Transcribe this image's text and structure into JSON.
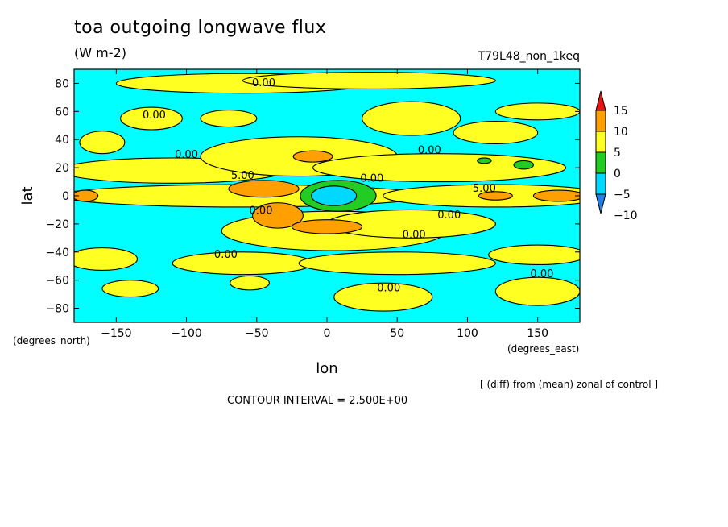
{
  "title": "toa outgoing longwave flux",
  "units": "(W m-2)",
  "case": "T79L48_non_1keq",
  "note": "[ (diff) from (mean) zonal of control ]",
  "contour_interval": "CONTOUR INTERVAL = 2.500E+00",
  "chart_data": {
    "type": "heatmap",
    "xlabel": "lon",
    "ylabel": "lat",
    "x_unit_label": "(degrees_east)",
    "y_unit_label": "(degrees_north)",
    "xlim": [
      -180,
      180
    ],
    "ylim": [
      -90,
      90
    ],
    "x_ticks": [
      -150,
      -100,
      -50,
      0,
      50,
      100,
      150
    ],
    "y_ticks": [
      -80,
      -60,
      -40,
      -20,
      0,
      20,
      40,
      60,
      80
    ],
    "colorbar": {
      "levels": [
        -10,
        -5,
        0,
        5,
        10,
        15
      ],
      "labels": [
        "15",
        "10",
        "5",
        "0",
        "−5",
        "−10"
      ],
      "colors": [
        "#1e7fe6",
        "#00d8ff",
        "#22cc22",
        "#ffff22",
        "#ffa000",
        "#e81414"
      ]
    },
    "background_color": "#00ffff",
    "contour_labels": [
      {
        "text": "0.00",
        "lon": -45,
        "lat": 78
      },
      {
        "text": "0.00",
        "lon": -123,
        "lat": 55
      },
      {
        "text": "0.00",
        "lon": -100,
        "lat": 27
      },
      {
        "text": "5.00",
        "lon": -60,
        "lat": 12
      },
      {
        "text": "0.00",
        "lon": -47,
        "lat": -13
      },
      {
        "text": "0.00",
        "lon": 32,
        "lat": 10
      },
      {
        "text": "0.00",
        "lon": 73,
        "lat": 30
      },
      {
        "text": "5.00",
        "lon": 112,
        "lat": 3
      },
      {
        "text": "0.00",
        "lon": 87,
        "lat": -16
      },
      {
        "text": "0.00",
        "lon": 62,
        "lat": -30
      },
      {
        "text": "0.00",
        "lon": -72,
        "lat": -44
      },
      {
        "text": "0.00",
        "lon": 44,
        "lat": -68
      },
      {
        "text": "0.00",
        "lon": 153,
        "lat": -58
      }
    ],
    "regions": [
      {
        "level": 0,
        "lon": -160,
        "lat": 38,
        "rx": 16,
        "ry": 8
      },
      {
        "level": 0,
        "lon": -125,
        "lat": 55,
        "rx": 22,
        "ry": 8
      },
      {
        "level": 0,
        "lon": -70,
        "lat": 55,
        "rx": 20,
        "ry": 6
      },
      {
        "level": 0,
        "lon": -60,
        "lat": 80,
        "rx": 90,
        "ry": 7
      },
      {
        "level": 0,
        "lon": 30,
        "lat": 82,
        "rx": 90,
        "ry": 6
      },
      {
        "level": 0,
        "lon": 60,
        "lat": 55,
        "rx": 35,
        "ry": 12
      },
      {
        "level": 0,
        "lon": 120,
        "lat": 45,
        "rx": 30,
        "ry": 8
      },
      {
        "level": 0,
        "lon": 150,
        "lat": 60,
        "rx": 30,
        "ry": 6
      },
      {
        "level": 0,
        "lon": -110,
        "lat": 18,
        "rx": 80,
        "ry": 9
      },
      {
        "level": 0,
        "lon": -20,
        "lat": 28,
        "rx": 70,
        "ry": 14
      },
      {
        "level": 0,
        "lon": 80,
        "lat": 20,
        "rx": 90,
        "ry": 10
      },
      {
        "level": 0,
        "lon": -60,
        "lat": 0,
        "rx": 130,
        "ry": 8
      },
      {
        "level": 0,
        "lon": 120,
        "lat": 0,
        "rx": 80,
        "ry": 8
      },
      {
        "level": 0,
        "lon": 5,
        "lat": -25,
        "rx": 80,
        "ry": 14
      },
      {
        "level": 0,
        "lon": 60,
        "lat": -20,
        "rx": 60,
        "ry": 10
      },
      {
        "level": 0,
        "lon": -160,
        "lat": -45,
        "rx": 25,
        "ry": 8
      },
      {
        "level": 0,
        "lon": -60,
        "lat": -48,
        "rx": 50,
        "ry": 8
      },
      {
        "level": 0,
        "lon": 50,
        "lat": -48,
        "rx": 70,
        "ry": 8
      },
      {
        "level": 0,
        "lon": 150,
        "lat": -42,
        "rx": 35,
        "ry": 7
      },
      {
        "level": 0,
        "lon": -140,
        "lat": -66,
        "rx": 20,
        "ry": 6
      },
      {
        "level": 0,
        "lon": -55,
        "lat": -62,
        "rx": 14,
        "ry": 5
      },
      {
        "level": 0,
        "lon": 40,
        "lat": -72,
        "rx": 35,
        "ry": 10
      },
      {
        "level": 0,
        "lon": 150,
        "lat": -68,
        "rx": 30,
        "ry": 10
      },
      {
        "level": 5,
        "lon": -10,
        "lat": 28,
        "rx": 14,
        "ry": 4
      },
      {
        "level": 5,
        "lon": -45,
        "lat": 5,
        "rx": 25,
        "ry": 6
      },
      {
        "level": 5,
        "lon": -35,
        "lat": -14,
        "rx": 18,
        "ry": 9
      },
      {
        "level": 5,
        "lon": 0,
        "lat": -22,
        "rx": 25,
        "ry": 5
      },
      {
        "level": 5,
        "lon": -172,
        "lat": 0,
        "rx": 9,
        "ry": 4
      },
      {
        "level": 5,
        "lon": 120,
        "lat": 0,
        "rx": 12,
        "ry": 3
      },
      {
        "level": 5,
        "lon": 165,
        "lat": 0,
        "rx": 18,
        "ry": 4
      },
      {
        "level": -5,
        "lon": 8,
        "lat": 0,
        "rx": 27,
        "ry": 11
      },
      {
        "level": -5,
        "lon": 140,
        "lat": 22,
        "rx": 7,
        "ry": 3
      },
      {
        "level": -5,
        "lon": 112,
        "lat": 25,
        "rx": 5,
        "ry": 2
      },
      {
        "level": -10,
        "lon": 5,
        "lat": 0,
        "rx": 16,
        "ry": 7
      }
    ]
  }
}
